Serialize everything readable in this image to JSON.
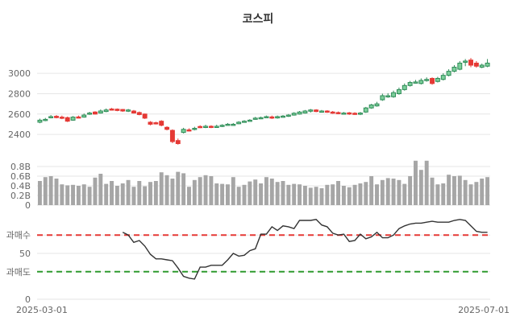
{
  "chart_data": {
    "type": "candlestick",
    "title": "코스피",
    "colors": {
      "up_body": "#2e8b57",
      "up_body_fill": "#7ccf9a",
      "down": "#e53935",
      "volume": "#a6a6a6",
      "rsi_line": "#333333",
      "overbought": "#e53935",
      "oversold": "#2e9a2e",
      "grid": "#e6e6e6"
    },
    "x_ticks": [
      "2025-03-01",
      "2025-07-01"
    ],
    "dates": [
      "2025-03-04",
      "2025-03-05",
      "2025-03-06",
      "2025-03-07",
      "2025-03-10",
      "2025-03-11",
      "2025-03-12",
      "2025-03-13",
      "2025-03-14",
      "2025-03-17",
      "2025-03-18",
      "2025-03-19",
      "2025-03-20",
      "2025-03-21",
      "2025-03-24",
      "2025-03-25",
      "2025-03-26",
      "2025-03-27",
      "2025-03-28",
      "2025-03-31",
      "2025-04-01",
      "2025-04-02",
      "2025-04-03",
      "2025-04-04",
      "2025-04-07",
      "2025-04-08",
      "2025-04-09",
      "2025-04-10",
      "2025-04-11",
      "2025-04-14",
      "2025-04-15",
      "2025-04-16",
      "2025-04-17",
      "2025-04-18",
      "2025-04-21",
      "2025-04-22",
      "2025-04-23",
      "2025-04-24",
      "2025-04-25",
      "2025-04-28",
      "2025-04-29",
      "2025-04-30",
      "2025-05-02",
      "2025-05-07",
      "2025-05-08",
      "2025-05-09",
      "2025-05-12",
      "2025-05-13",
      "2025-05-14",
      "2025-05-15",
      "2025-05-16",
      "2025-05-19",
      "2025-05-20",
      "2025-05-21",
      "2025-05-22",
      "2025-05-23",
      "2025-05-26",
      "2025-05-27",
      "2025-05-28",
      "2025-05-29",
      "2025-05-30",
      "2025-06-02",
      "2025-06-04",
      "2025-06-05",
      "2025-06-09",
      "2025-06-10",
      "2025-06-11",
      "2025-06-12",
      "2025-06-13",
      "2025-06-16",
      "2025-06-17",
      "2025-06-18",
      "2025-06-19",
      "2025-06-20",
      "2025-06-23",
      "2025-06-24",
      "2025-06-25",
      "2025-06-26",
      "2025-06-27",
      "2025-06-30",
      "2025-07-01",
      "2025-07-02"
    ],
    "price_panel": {
      "ylim": [
        2330,
        3230
      ],
      "yticks": [
        "2400",
        "2600",
        "2800",
        "3000"
      ]
    },
    "close": [
      2540,
      2548,
      2575,
      2565,
      2563,
      2530,
      2570,
      2568,
      2590,
      2610,
      2600,
      2630,
      2640,
      2642,
      2635,
      2630,
      2640,
      2610,
      2595,
      2560,
      2500,
      2510,
      2490,
      2450,
      2330,
      2310,
      2450,
      2440,
      2460,
      2470,
      2480,
      2470,
      2480,
      2490,
      2500,
      2500,
      2520,
      2530,
      2540,
      2560,
      2565,
      2575,
      2560,
      2575,
      2580,
      2590,
      2608,
      2620,
      2630,
      2640,
      2625,
      2630,
      2620,
      2610,
      2605,
      2610,
      2600,
      2600,
      2610,
      2660,
      2690,
      2700,
      2780,
      2780,
      2810,
      2840,
      2880,
      2910,
      2915,
      2930,
      2940,
      2900,
      2950,
      2980,
      3020,
      3060,
      3100,
      3120,
      3080,
      3070,
      3080,
      3100
    ],
    "open": [
      2520,
      2538,
      2565,
      2578,
      2570,
      2565,
      2540,
      2572,
      2570,
      2598,
      2620,
      2610,
      2625,
      2650,
      2648,
      2645,
      2628,
      2630,
      2615,
      2600,
      2520,
      2515,
      2530,
      2470,
      2440,
      2340,
      2420,
      2445,
      2450,
      2478,
      2470,
      2480,
      2470,
      2478,
      2492,
      2495,
      2505,
      2523,
      2535,
      2548,
      2557,
      2568,
      2572,
      2562,
      2570,
      2578,
      2590,
      2600,
      2610,
      2628,
      2640,
      2625,
      2630,
      2620,
      2615,
      2600,
      2612,
      2608,
      2598,
      2620,
      2660,
      2680,
      2740,
      2780,
      2770,
      2800,
      2840,
      2880,
      2910,
      2900,
      2930,
      2950,
      2920,
      2940,
      2980,
      3020,
      3040,
      3110,
      3130,
      3100,
      3060,
      3070
    ],
    "high": [
      2555,
      2562,
      2590,
      2590,
      2585,
      2575,
      2580,
      2585,
      2605,
      2622,
      2628,
      2645,
      2655,
      2660,
      2655,
      2650,
      2650,
      2640,
      2625,
      2605,
      2530,
      2525,
      2540,
      2480,
      2450,
      2360,
      2465,
      2460,
      2475,
      2490,
      2495,
      2490,
      2495,
      2500,
      2512,
      2512,
      2530,
      2540,
      2550,
      2572,
      2575,
      2585,
      2585,
      2585,
      2590,
      2600,
      2618,
      2630,
      2640,
      2650,
      2648,
      2640,
      2638,
      2630,
      2625,
      2620,
      2620,
      2618,
      2620,
      2670,
      2700,
      2720,
      2800,
      2805,
      2830,
      2860,
      2900,
      2925,
      2935,
      2950,
      2960,
      2960,
      2965,
      3000,
      3040,
      3080,
      3120,
      3140,
      3150,
      3120,
      3095,
      3140
    ],
    "low": [
      2510,
      2530,
      2558,
      2558,
      2550,
      2522,
      2535,
      2560,
      2565,
      2592,
      2595,
      2605,
      2618,
      2635,
      2628,
      2622,
      2620,
      2605,
      2588,
      2552,
      2490,
      2498,
      2480,
      2440,
      2315,
      2300,
      2410,
      2430,
      2440,
      2462,
      2462,
      2462,
      2465,
      2472,
      2488,
      2490,
      2500,
      2518,
      2530,
      2545,
      2550,
      2562,
      2552,
      2555,
      2565,
      2572,
      2585,
      2595,
      2605,
      2615,
      2618,
      2620,
      2612,
      2602,
      2598,
      2595,
      2592,
      2592,
      2590,
      2612,
      2652,
      2672,
      2730,
      2760,
      2760,
      2790,
      2830,
      2870,
      2900,
      2890,
      2918,
      2888,
      2910,
      2930,
      2970,
      3010,
      3030,
      3070,
      3060,
      3055,
      3050,
      3060
    ],
    "volume_panel": {
      "ylim": [
        0,
        0.95
      ],
      "yticks": [
        "0",
        "0.2B",
        "0.4B",
        "0.6B",
        "0.8B"
      ]
    },
    "volume": [
      0.5,
      0.58,
      0.6,
      0.55,
      0.43,
      0.41,
      0.42,
      0.4,
      0.43,
      0.38,
      0.57,
      0.65,
      0.44,
      0.5,
      0.4,
      0.45,
      0.52,
      0.38,
      0.5,
      0.39,
      0.48,
      0.5,
      0.68,
      0.62,
      0.55,
      0.69,
      0.66,
      0.38,
      0.52,
      0.58,
      0.62,
      0.6,
      0.45,
      0.44,
      0.43,
      0.58,
      0.38,
      0.42,
      0.49,
      0.53,
      0.45,
      0.58,
      0.55,
      0.48,
      0.5,
      0.42,
      0.44,
      0.43,
      0.4,
      0.36,
      0.38,
      0.35,
      0.42,
      0.43,
      0.5,
      0.4,
      0.37,
      0.42,
      0.45,
      0.48,
      0.6,
      0.43,
      0.52,
      0.56,
      0.55,
      0.52,
      0.44,
      0.6,
      0.92,
      0.73,
      0.92,
      0.57,
      0.43,
      0.45,
      0.63,
      0.6,
      0.61,
      0.52,
      0.43,
      0.48,
      0.55,
      0.58
    ],
    "rsi_panel": {
      "ylim": [
        0,
        100
      ],
      "yticks": [
        "0",
        "과매도",
        "50",
        "과매수"
      ],
      "overbought": 70,
      "oversold": 30
    },
    "rsi": [
      null,
      null,
      null,
      null,
      null,
      null,
      null,
      null,
      null,
      null,
      null,
      null,
      null,
      null,
      null,
      73,
      70,
      62,
      64,
      58,
      49,
      44,
      44,
      43,
      42,
      34,
      25,
      23,
      22,
      35,
      35,
      37,
      37,
      37,
      43,
      50,
      47,
      48,
      53,
      55,
      71,
      71,
      79,
      75,
      80,
      79,
      77,
      86,
      86,
      86,
      87,
      81,
      79,
      72,
      70,
      71,
      63,
      64,
      71,
      66,
      68,
      73,
      67,
      67,
      70,
      77,
      80,
      82,
      83,
      83,
      84,
      85,
      84,
      84,
      84,
      86,
      87,
      86,
      80,
      74,
      73,
      73
    ]
  }
}
